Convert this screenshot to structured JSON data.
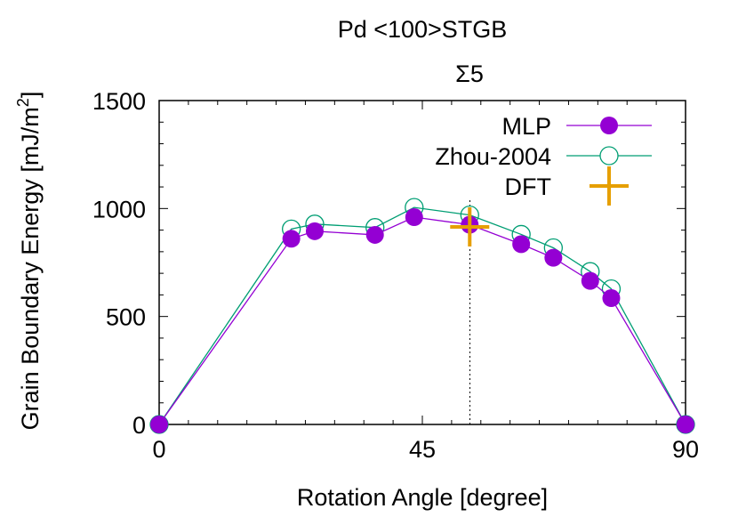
{
  "chart_data": {
    "type": "line",
    "title": "Pd <100>STGB",
    "annotation": "Σ5",
    "xlabel": "Rotation Angle [degree]",
    "ylabel_main": "Grain Boundary Energy [mJ/m",
    "ylabel_sup": "2",
    "ylabel_close": "]",
    "xlim": [
      0,
      90
    ],
    "ylim": [
      0,
      1500
    ],
    "xticks": [
      0,
      45,
      90
    ],
    "yticks": [
      0,
      500,
      1000,
      1500
    ],
    "xtick_labels": [
      "0",
      "45",
      "90"
    ],
    "ytick_labels": [
      "0",
      "500",
      "1000",
      "1500"
    ],
    "x_minor_step": 5,
    "y_minor_step": 100,
    "grid": false,
    "legend_position": "top-right",
    "reference_line_x": 53.13,
    "series": [
      {
        "name": "MLP",
        "color": "#9400d3",
        "marker": "filled-circle",
        "points": [
          [
            0,
            0
          ],
          [
            22.6,
            860
          ],
          [
            26.6,
            895
          ],
          [
            36.9,
            878
          ],
          [
            43.6,
            960
          ],
          [
            53.1,
            925
          ],
          [
            61.9,
            835
          ],
          [
            67.4,
            772
          ],
          [
            73.7,
            665
          ],
          [
            77.3,
            585
          ],
          [
            90,
            0
          ]
        ]
      },
      {
        "name": "Zhou-2004",
        "color": "#009e73",
        "marker": "open-circle",
        "points": [
          [
            0,
            0
          ],
          [
            22.6,
            905
          ],
          [
            26.6,
            928
          ],
          [
            36.9,
            912
          ],
          [
            43.6,
            1005
          ],
          [
            53.1,
            970
          ],
          [
            61.9,
            880
          ],
          [
            67.4,
            818
          ],
          [
            73.7,
            708
          ],
          [
            77.3,
            628
          ],
          [
            90,
            0
          ]
        ]
      },
      {
        "name": "DFT",
        "color": "#e69f00",
        "marker": "plus",
        "points": [
          [
            53.1,
            915
          ]
        ]
      }
    ]
  }
}
